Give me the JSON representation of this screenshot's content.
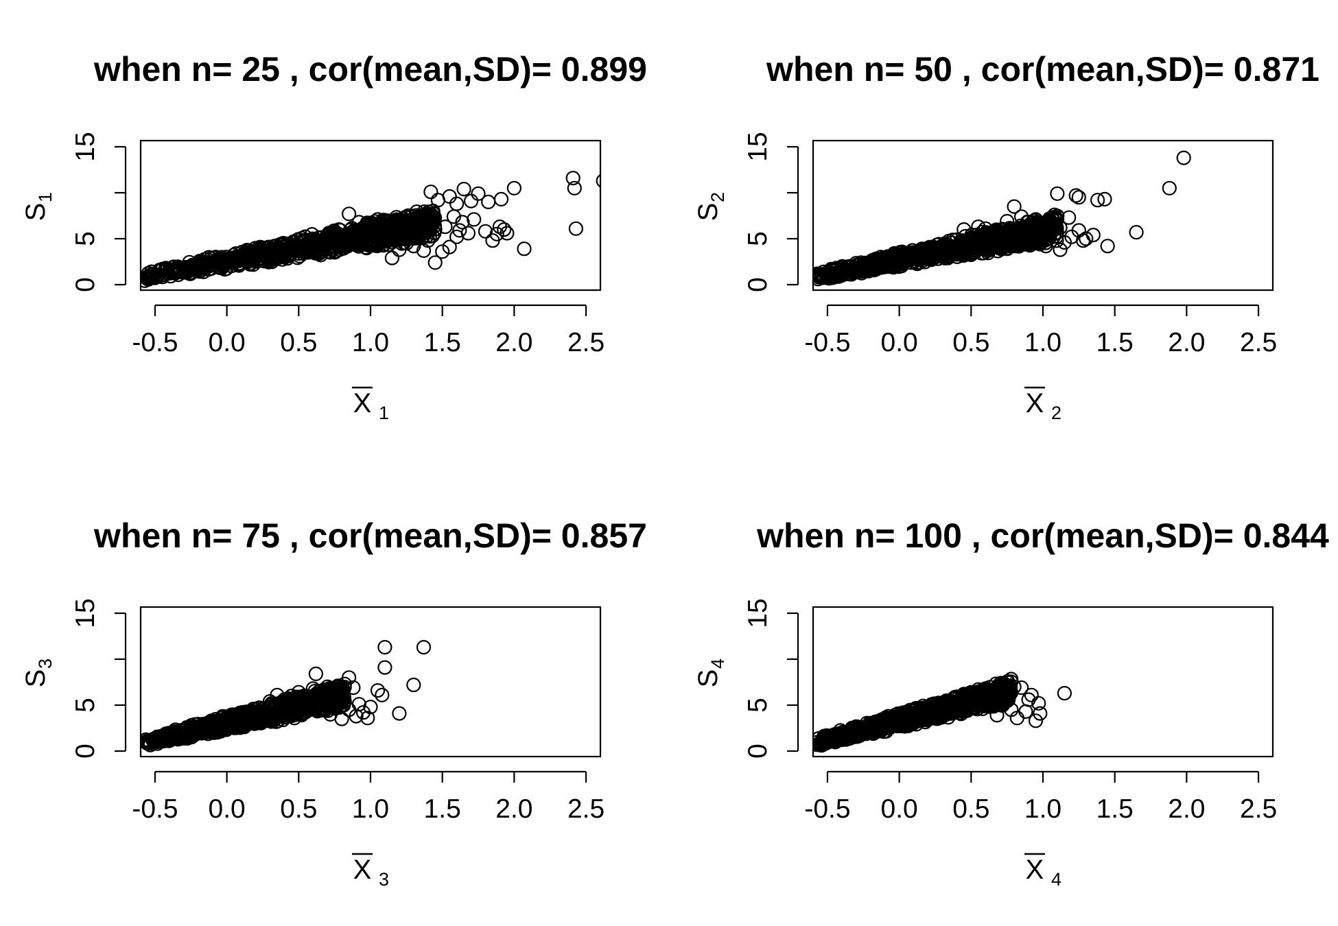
{
  "chart_data": [
    {
      "type": "scatter",
      "title": "when n= 25 , cor(mean,SD)= 0.899",
      "xlabel": "X",
      "xlabel_sub": "1",
      "ylabel": "S",
      "ylabel_sub": "1",
      "xlim": [
        -0.6,
        2.6
      ],
      "ylim": [
        0,
        15
      ],
      "xticks": [
        "-0.5",
        "0.0",
        "0.5",
        "1.0",
        "1.5",
        "2.0",
        "2.5"
      ],
      "yticks": [
        "0",
        "5",
        "15"
      ],
      "cloud": {
        "x_end": 1.45,
        "slope": 2.9,
        "lower_slope": 1.6,
        "upper_slope": 4.2
      },
      "points": [
        [
          1.42,
          10.1
        ],
        [
          1.47,
          9.2
        ],
        [
          1.55,
          9.6
        ],
        [
          1.6,
          8.8
        ],
        [
          1.65,
          10.4
        ],
        [
          1.7,
          9.1
        ],
        [
          1.75,
          9.9
        ],
        [
          1.82,
          9.0
        ],
        [
          1.91,
          9.3
        ],
        [
          2.0,
          10.5
        ],
        [
          2.41,
          11.6
        ],
        [
          2.42,
          10.5
        ],
        [
          2.62,
          11.3
        ],
        [
          2.43,
          6.1
        ],
        [
          2.07,
          3.9
        ],
        [
          1.9,
          6.3
        ],
        [
          1.93,
          6.0
        ],
        [
          1.95,
          5.6
        ],
        [
          1.88,
          5.5
        ],
        [
          1.85,
          4.8
        ],
        [
          1.8,
          5.8
        ],
        [
          1.72,
          7.1
        ],
        [
          1.68,
          5.6
        ],
        [
          1.64,
          6.8
        ],
        [
          1.6,
          5.2
        ],
        [
          1.55,
          4.1
        ],
        [
          1.5,
          3.6
        ],
        [
          1.45,
          2.4
        ],
        [
          1.4,
          4.8
        ],
        [
          1.37,
          3.7
        ],
        [
          1.3,
          4.2
        ],
        [
          1.25,
          4.5
        ],
        [
          1.2,
          3.8
        ],
        [
          1.15,
          2.9
        ],
        [
          1.58,
          7.4
        ],
        [
          1.52,
          6.3
        ],
        [
          1.62,
          5.9
        ],
        [
          1.35,
          7.0
        ],
        [
          1.28,
          6.5
        ],
        [
          1.18,
          6.8
        ],
        [
          1.1,
          5.9
        ],
        [
          1.05,
          7.1
        ],
        [
          0.98,
          5.6
        ],
        [
          0.92,
          6.8
        ],
        [
          0.85,
          7.7
        ],
        [
          0.78,
          6.0
        ]
      ]
    },
    {
      "type": "scatter",
      "title": "when n= 50 , cor(mean,SD)= 0.871",
      "xlabel": "X",
      "xlabel_sub": "2",
      "ylabel": "S",
      "ylabel_sub": "2",
      "xlim": [
        -0.6,
        2.6
      ],
      "ylim": [
        0,
        15
      ],
      "xticks": [
        "-0.5",
        "0.0",
        "0.5",
        "1.0",
        "1.5",
        "2.0",
        "2.5"
      ],
      "yticks": [
        "0",
        "5",
        "15"
      ],
      "cloud": {
        "x_end": 1.1,
        "slope": 3.1,
        "lower_slope": 1.9,
        "upper_slope": 4.6
      },
      "points": [
        [
          1.98,
          13.8
        ],
        [
          1.88,
          10.5
        ],
        [
          1.38,
          9.2
        ],
        [
          1.43,
          9.3
        ],
        [
          1.23,
          9.7
        ],
        [
          1.25,
          9.5
        ],
        [
          1.1,
          9.9
        ],
        [
          0.8,
          8.5
        ],
        [
          1.65,
          5.7
        ],
        [
          1.45,
          4.2
        ],
        [
          1.3,
          5.0
        ],
        [
          1.35,
          5.4
        ],
        [
          1.28,
          4.8
        ],
        [
          1.2,
          5.2
        ],
        [
          1.15,
          4.6
        ],
        [
          1.25,
          5.9
        ],
        [
          1.05,
          5.5
        ],
        [
          1.12,
          6.2
        ],
        [
          1.0,
          6.5
        ],
        [
          0.95,
          7.1
        ],
        [
          0.9,
          6.0
        ],
        [
          0.85,
          7.4
        ],
        [
          1.08,
          7.6
        ],
        [
          1.18,
          7.3
        ],
        [
          0.75,
          6.9
        ],
        [
          0.7,
          5.8
        ],
        [
          0.6,
          6.1
        ],
        [
          0.55,
          6.3
        ],
        [
          0.45,
          6.0
        ],
        [
          1.02,
          4.2
        ],
        [
          1.12,
          3.8
        ]
      ]
    },
    {
      "type": "scatter",
      "title": "when n= 75 , cor(mean,SD)= 0.857",
      "xlabel": "X",
      "xlabel_sub": "3",
      "ylabel": "S",
      "ylabel_sub": "3",
      "xlim": [
        -0.6,
        2.6
      ],
      "ylim": [
        0,
        15
      ],
      "xticks": [
        "-0.5",
        "0.0",
        "0.5",
        "1.0",
        "1.5",
        "2.0",
        "2.5"
      ],
      "yticks": [
        "0",
        "5",
        "15"
      ],
      "cloud": {
        "x_end": 0.82,
        "slope": 3.7,
        "lower_slope": 2.4,
        "upper_slope": 5.1
      },
      "points": [
        [
          1.1,
          11.3
        ],
        [
          1.37,
          11.3
        ],
        [
          1.1,
          9.1
        ],
        [
          1.3,
          7.2
        ],
        [
          1.2,
          4.1
        ],
        [
          0.62,
          8.4
        ],
        [
          0.85,
          8.0
        ],
        [
          1.05,
          6.6
        ],
        [
          1.08,
          6.1
        ],
        [
          1.0,
          4.8
        ],
        [
          0.98,
          3.6
        ],
        [
          0.92,
          5.1
        ],
        [
          0.95,
          4.2
        ],
        [
          0.88,
          6.9
        ],
        [
          0.82,
          7.3
        ],
        [
          0.78,
          6.4
        ],
        [
          0.75,
          5.4
        ],
        [
          0.7,
          7.0
        ],
        [
          0.68,
          6.2
        ],
        [
          0.65,
          4.6
        ],
        [
          0.6,
          6.8
        ],
        [
          0.55,
          5.9
        ],
        [
          0.5,
          6.4
        ],
        [
          0.45,
          6.0
        ],
        [
          0.4,
          5.6
        ],
        [
          0.35,
          6.1
        ],
        [
          0.3,
          5.4
        ],
        [
          0.9,
          3.8
        ],
        [
          0.85,
          4.5
        ],
        [
          0.8,
          3.5
        ],
        [
          0.72,
          4.0
        ]
      ]
    },
    {
      "type": "scatter",
      "title": "when n= 100 , cor(mean,SD)= 0.844",
      "xlabel": "X",
      "xlabel_sub": "4",
      "ylabel": "S",
      "ylabel_sub": "4",
      "xlim": [
        -0.6,
        2.6
      ],
      "ylim": [
        0,
        15
      ],
      "xticks": [
        "-0.5",
        "0.0",
        "0.5",
        "1.0",
        "1.5",
        "2.0",
        "2.5"
      ],
      "yticks": [
        "0",
        "5",
        "15"
      ],
      "cloud": {
        "x_end": 0.78,
        "slope": 4.2,
        "lower_slope": 2.8,
        "upper_slope": 5.6
      },
      "points": [
        [
          1.15,
          6.3
        ],
        [
          0.97,
          5.2
        ],
        [
          0.95,
          3.3
        ],
        [
          0.98,
          4.1
        ],
        [
          0.92,
          6.1
        ],
        [
          0.9,
          5.6
        ],
        [
          0.85,
          6.9
        ],
        [
          0.8,
          7.0
        ],
        [
          0.75,
          6.6
        ],
        [
          0.7,
          6.9
        ],
        [
          0.65,
          6.4
        ],
        [
          0.6,
          6.8
        ],
        [
          0.55,
          6.7
        ],
        [
          0.5,
          6.4
        ],
        [
          0.45,
          6.2
        ],
        [
          0.4,
          5.9
        ],
        [
          0.88,
          4.3
        ],
        [
          0.82,
          3.6
        ],
        [
          0.78,
          4.5
        ],
        [
          0.72,
          5.0
        ],
        [
          0.68,
          3.9
        ],
        [
          0.62,
          5.3
        ],
        [
          0.58,
          4.6
        ],
        [
          0.35,
          5.5
        ],
        [
          0.3,
          5.1
        ]
      ]
    }
  ]
}
